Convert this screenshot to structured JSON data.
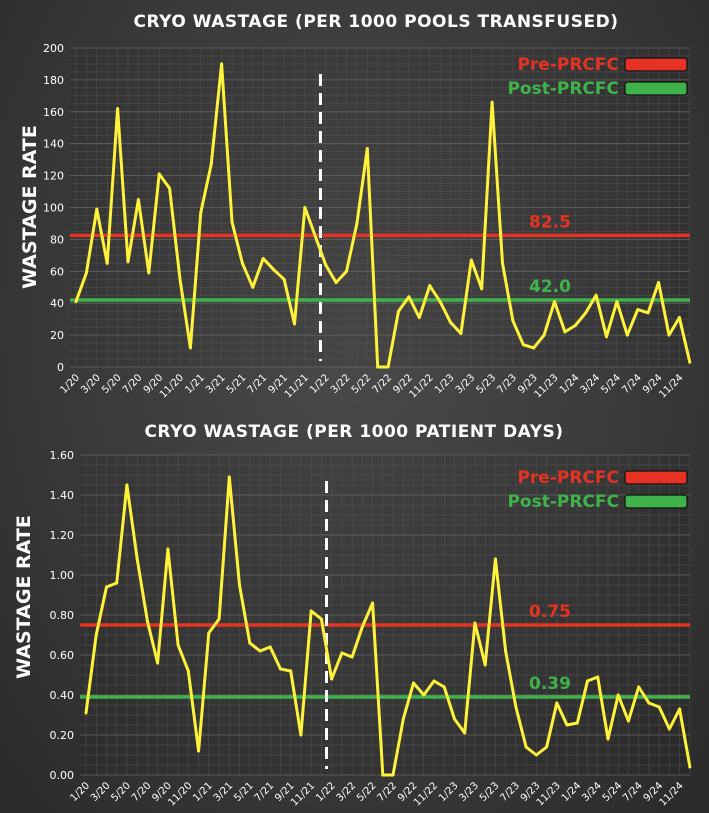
{
  "colors": {
    "series": "#fff23a",
    "pre": "#e53222",
    "post": "#3fb34a",
    "marker": "#ffffff",
    "grid": "#5c5c5c",
    "text": "#ffffff"
  },
  "chart_data": [
    {
      "type": "line",
      "title": "CRYO WASTAGE (PER 1000 POOLS TRANSFUSED)",
      "xlabel": "",
      "ylabel": "WASTAGE RATE",
      "ylim": [
        0,
        200
      ],
      "yticks": [
        "0",
        "20",
        "40",
        "60",
        "80",
        "100",
        "120",
        "140",
        "160",
        "180",
        "200"
      ],
      "yticks_values": [
        0,
        20,
        40,
        60,
        80,
        100,
        120,
        140,
        160,
        180,
        200
      ],
      "x_tick_labels": [
        "1/20",
        "3/20",
        "5/20",
        "7/20",
        "9/20",
        "11/20",
        "1/21",
        "3/21",
        "5/21",
        "7/21",
        "9/21",
        "11/21",
        "1/22",
        "3/22",
        "5/22",
        "7/22",
        "9/22",
        "11/22",
        "1/23",
        "3/23",
        "5/23",
        "7/23",
        "9/23",
        "11/23",
        "1/24",
        "3/24",
        "5/24",
        "7/24",
        "9/24",
        "11/24"
      ],
      "grid": true,
      "legend_position": "top-right",
      "divider_after_index": 23.5,
      "series": [
        {
          "values": [
            41,
            59,
            99,
            65,
            162,
            66,
            105,
            59,
            121,
            112,
            55,
            12,
            97,
            127,
            190,
            91,
            65,
            50,
            68,
            61,
            55,
            27,
            100,
            82,
            64,
            53,
            60,
            90,
            137,
            0,
            0,
            35,
            44,
            31,
            51,
            41,
            28,
            21,
            67,
            49,
            166,
            65,
            29,
            14,
            12,
            20,
            41,
            22,
            26,
            34,
            45,
            19,
            41,
            20,
            36,
            34,
            53,
            20,
            31,
            3
          ]
        }
      ],
      "reference_lines": [
        {
          "name": "Pre-PRCFC",
          "value": 82.5,
          "label": "82.5",
          "color_key": "pre"
        },
        {
          "name": "Post-PRCFC",
          "value": 42.0,
          "label": "42.0",
          "color_key": "post"
        }
      ]
    },
    {
      "type": "line",
      "title": "CRYO WASTAGE (PER 1000 PATIENT DAYS)",
      "xlabel": "",
      "ylabel": "WASTAGE RATE",
      "ylim": [
        0,
        1.6
      ],
      "yticks": [
        "0.00",
        "0.20",
        "0.40",
        "0.60",
        "0.80",
        "1.00",
        "1.20",
        "1.40",
        "1.60"
      ],
      "yticks_values": [
        0,
        0.2,
        0.4,
        0.6,
        0.8,
        1.0,
        1.2,
        1.4,
        1.6
      ],
      "x_tick_labels": [
        "1/20",
        "3/20",
        "5/20",
        "7/20",
        "9/20",
        "11/20",
        "1/21",
        "3/21",
        "5/21",
        "7/21",
        "9/21",
        "11/21",
        "1/22",
        "3/22",
        "5/22",
        "7/22",
        "9/22",
        "11/22",
        "1/23",
        "3/23",
        "5/23",
        "7/23",
        "9/23",
        "11/23",
        "1/24",
        "3/24",
        "5/24",
        "7/24",
        "9/24",
        "11/24"
      ],
      "grid": true,
      "legend_position": "top-right",
      "divider_after_index": 23.5,
      "series": [
        {
          "values": [
            0.31,
            0.7,
            0.94,
            0.96,
            1.45,
            1.08,
            0.77,
            0.56,
            1.13,
            0.65,
            0.52,
            0.12,
            0.71,
            0.78,
            1.49,
            0.95,
            0.66,
            0.62,
            0.64,
            0.53,
            0.52,
            0.2,
            0.82,
            0.78,
            0.48,
            0.61,
            0.59,
            0.74,
            0.86,
            0.0,
            0.0,
            0.28,
            0.46,
            0.4,
            0.47,
            0.44,
            0.28,
            0.21,
            0.76,
            0.55,
            1.08,
            0.62,
            0.34,
            0.14,
            0.1,
            0.14,
            0.36,
            0.25,
            0.26,
            0.47,
            0.49,
            0.18,
            0.4,
            0.27,
            0.44,
            0.36,
            0.34,
            0.23,
            0.33,
            0.04
          ]
        }
      ],
      "reference_lines": [
        {
          "name": "Pre-PRCFC",
          "value": 0.75,
          "label": "0.75",
          "color_key": "pre"
        },
        {
          "name": "Post-PRCFC",
          "value": 0.39,
          "label": "0.39",
          "color_key": "post"
        }
      ]
    }
  ]
}
